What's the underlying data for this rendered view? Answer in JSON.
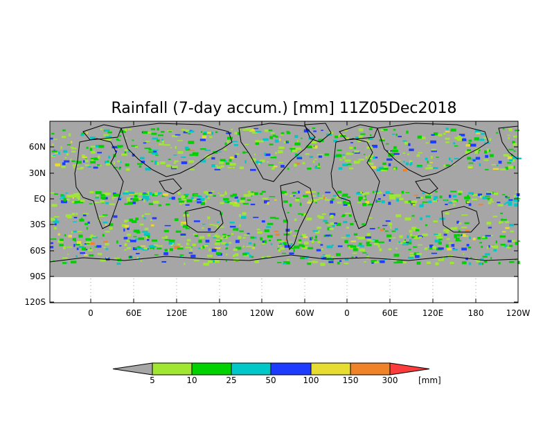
{
  "title": "Rainfall (7-day accum.) [mm] 11Z05Dec2018",
  "map": {
    "y_tick_labels": [
      "60N",
      "30N",
      "EQ",
      "30S",
      "60S",
      "90S",
      "120S"
    ],
    "x_tick_labels": [
      "0",
      "60E",
      "120E",
      "180",
      "120W",
      "60W",
      "0",
      "60E",
      "120E",
      "180",
      "120W"
    ],
    "land_color": "#a6a6a6",
    "no_data_color": "#ffffff"
  },
  "colorbar": {
    "unit_label": "[mm]",
    "thresholds": [
      "5",
      "10",
      "25",
      "50",
      "100",
      "150",
      "300"
    ],
    "colors": [
      "#a6a6a6",
      "#a0e632",
      "#00d200",
      "#00c8c8",
      "#1e3cff",
      "#e6dc32",
      "#f08228",
      "#fa3c3c"
    ]
  }
}
